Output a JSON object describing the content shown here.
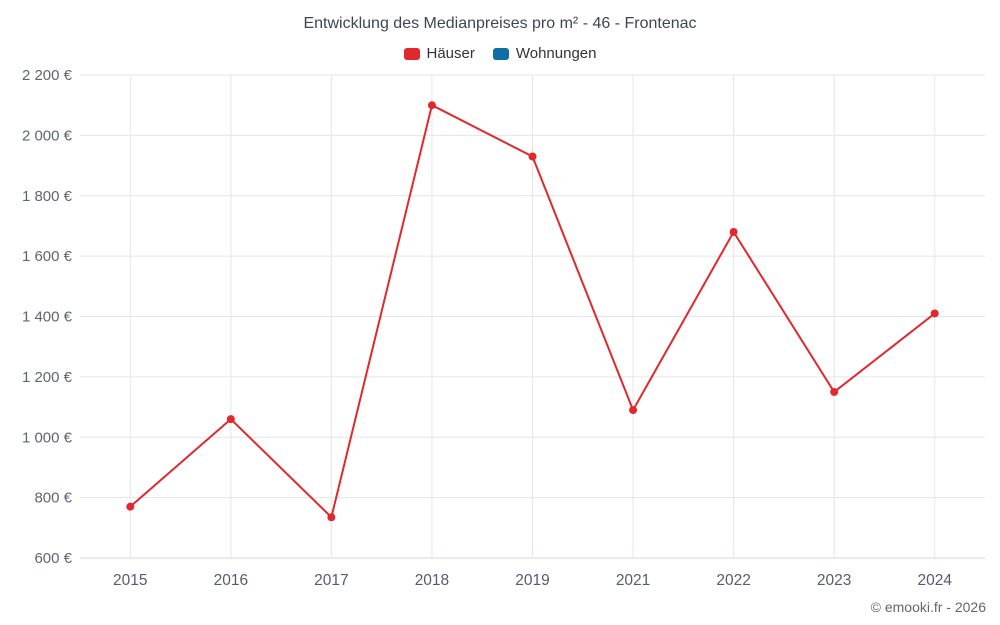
{
  "chart": {
    "title": "Entwicklung des Medianpreises pro m² - 46 - Frontenac",
    "credit": "© emooki.fr - 2026"
  },
  "chart_data": {
    "type": "line",
    "title": "Entwicklung des Medianpreises pro m² - 46 - Frontenac",
    "categories": [
      "2015",
      "2016",
      "2017",
      "2018",
      "2019",
      "2021",
      "2022",
      "2023",
      "2024"
    ],
    "series": [
      {
        "name": "Häuser",
        "color": "#e0282d",
        "values": [
          770,
          1060,
          735,
          2100,
          1930,
          1090,
          1680,
          1150,
          1410
        ]
      },
      {
        "name": "Wohnungen",
        "color": "#0f6da8",
        "values": []
      }
    ],
    "xlabel": "",
    "ylabel": "",
    "ylim": [
      600,
      2200
    ],
    "ytick_step": 200,
    "ytick_labels": [
      "600 €",
      "800 €",
      "1 000 €",
      "1 200 €",
      "1 400 €",
      "1 600 €",
      "1 800 €",
      "2 000 €",
      "2 200 €"
    ],
    "grid": true,
    "legend_position": "top"
  },
  "colors": {
    "grid": "#e6e6e6",
    "axis_line": "#cfd8e3",
    "axis_text": "#5c6672"
  }
}
